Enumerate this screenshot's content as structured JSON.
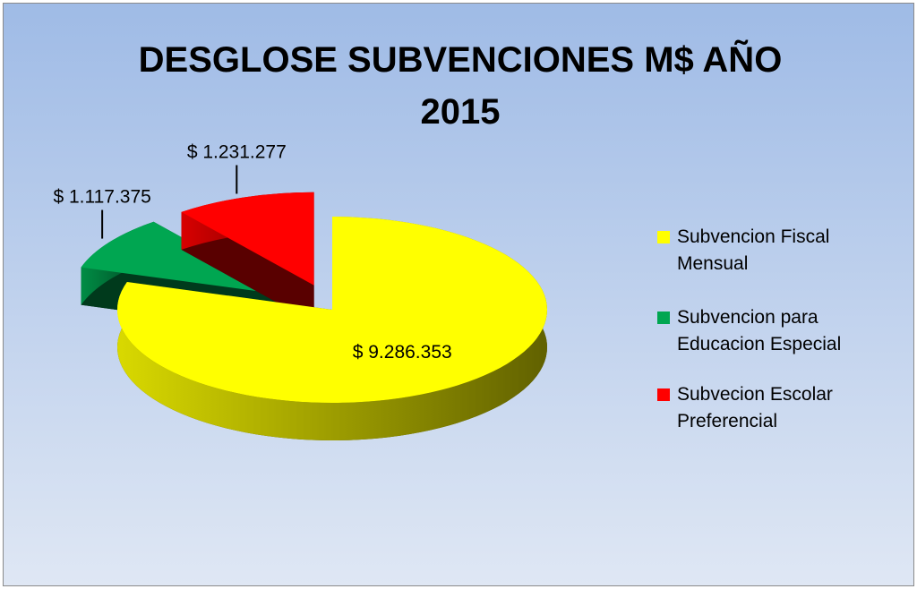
{
  "chart_data": {
    "type": "pie",
    "title": "DESGLOSE SUBVENCIONES M$ AÑO 2015",
    "categories": [
      "Subvencion Fiscal Mensual",
      "Subvencion para Educacion Especial",
      "Subvecion Escolar Preferencial"
    ],
    "values": [
      9286353,
      1117375,
      1231277
    ],
    "value_labels": [
      "$ 9.286.353",
      "$ 1.117.375",
      "$ 1.231.277"
    ],
    "colors": [
      "#ffff00",
      "#00a651",
      "#ff0000"
    ],
    "legend": "right"
  }
}
